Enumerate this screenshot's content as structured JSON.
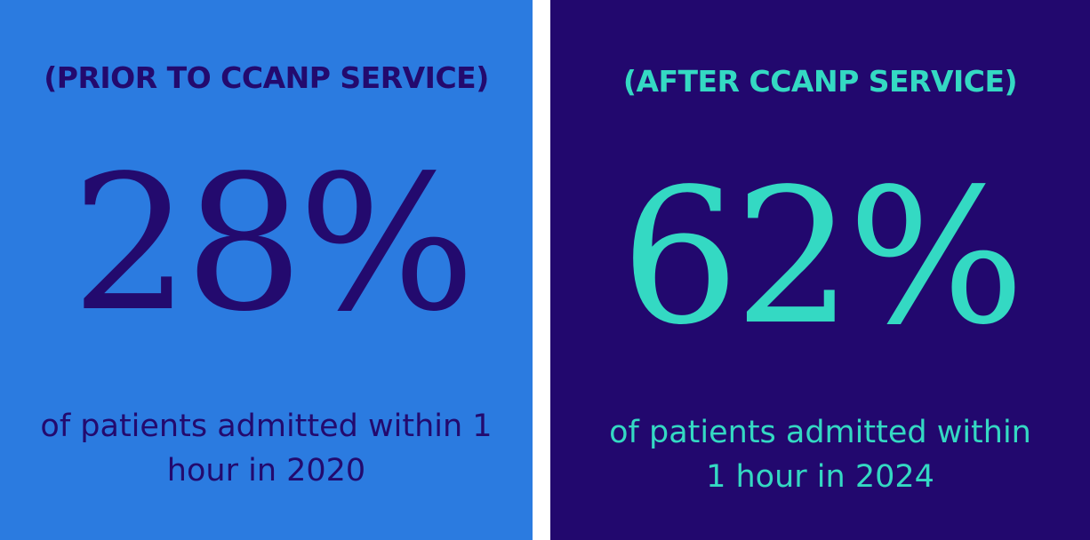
{
  "colors": {
    "left_bg": "#2B7BE0",
    "left_text": "#230A6E",
    "right_bg": "#22086E",
    "right_text": "#34D9C3"
  },
  "before": {
    "label": "(PRIOR TO CCANP SERVICE)",
    "value": "28%",
    "desc_line1": "of patients admitted within 1",
    "desc_line2": "hour in 2020"
  },
  "after": {
    "label": "(AFTER CCANP SERVICE)",
    "value": "62%",
    "desc_line1": "of patients admitted within",
    "desc_line2": "1 hour in 2024"
  }
}
